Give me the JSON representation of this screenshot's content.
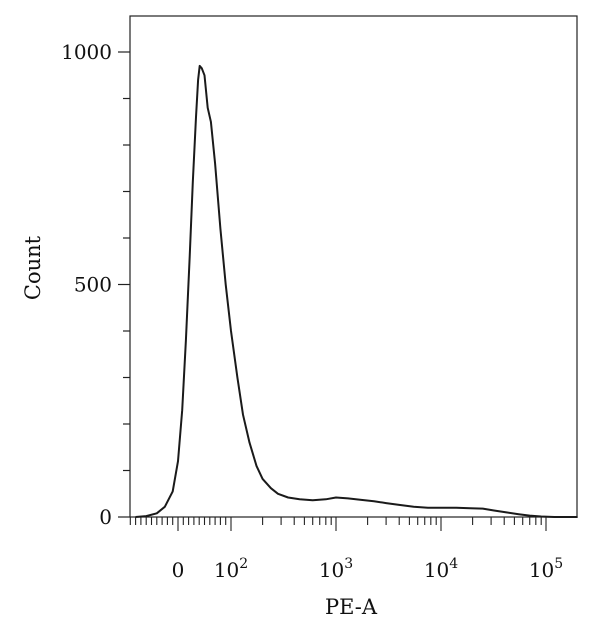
{
  "chart_data": {
    "type": "line",
    "title": "",
    "xlabel": "PE-A",
    "ylabel": "Count",
    "x_scale": "biexponential (linear near 0, log above ~100)",
    "xlim": [
      -100,
      200000
    ],
    "ylim": [
      0,
      1000
    ],
    "grid": false,
    "legend": "none",
    "x_ticks": [
      {
        "value": 0,
        "base": "0",
        "exp": ""
      },
      {
        "value": 100,
        "base": "10",
        "exp": "2"
      },
      {
        "value": 1000,
        "base": "10",
        "exp": "3"
      },
      {
        "value": 10000,
        "base": "10",
        "exp": "4"
      },
      {
        "value": 100000,
        "base": "10",
        "exp": "5"
      }
    ],
    "y_ticks": [
      {
        "value": 0,
        "label": "0"
      },
      {
        "value": 500,
        "label": "500"
      },
      {
        "value": 1000,
        "label": "1000"
      }
    ],
    "series": [
      {
        "color": "#1a1a1a",
        "points": [
          [
            -80,
            0
          ],
          [
            -60,
            2
          ],
          [
            -40,
            8
          ],
          [
            -25,
            22
          ],
          [
            -10,
            55
          ],
          [
            0,
            120
          ],
          [
            8,
            230
          ],
          [
            15,
            380
          ],
          [
            22,
            560
          ],
          [
            28,
            720
          ],
          [
            34,
            860
          ],
          [
            38,
            940
          ],
          [
            41,
            970
          ],
          [
            45,
            965
          ],
          [
            50,
            950
          ],
          [
            56,
            880
          ],
          [
            62,
            850
          ],
          [
            70,
            760
          ],
          [
            80,
            620
          ],
          [
            90,
            500
          ],
          [
            100,
            400
          ],
          [
            115,
            300
          ],
          [
            130,
            220
          ],
          [
            150,
            160
          ],
          [
            175,
            110
          ],
          [
            200,
            82
          ],
          [
            240,
            62
          ],
          [
            280,
            50
          ],
          [
            350,
            42
          ],
          [
            450,
            38
          ],
          [
            600,
            36
          ],
          [
            800,
            38
          ],
          [
            1000,
            42
          ],
          [
            1300,
            40
          ],
          [
            1700,
            37
          ],
          [
            2300,
            34
          ],
          [
            3000,
            30
          ],
          [
            4000,
            26
          ],
          [
            5500,
            22
          ],
          [
            7500,
            20
          ],
          [
            10000,
            20
          ],
          [
            14000,
            20
          ],
          [
            19000,
            19
          ],
          [
            25000,
            18
          ],
          [
            32000,
            14
          ],
          [
            42000,
            10
          ],
          [
            55000,
            6
          ],
          [
            70000,
            3
          ],
          [
            90000,
            1
          ],
          [
            120000,
            0
          ],
          [
            200000,
            0
          ]
        ]
      }
    ]
  }
}
